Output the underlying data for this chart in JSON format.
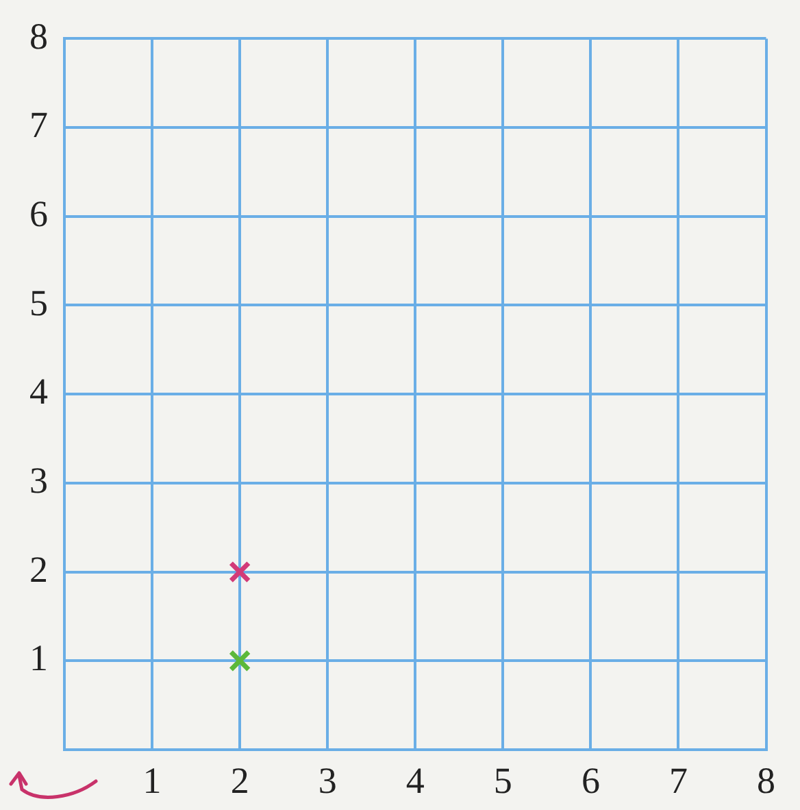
{
  "chart_data": {
    "type": "scatter",
    "xlim": [
      0,
      8
    ],
    "ylim": [
      0,
      8
    ],
    "xticks": [
      {
        "value": 0,
        "label": null
      },
      1,
      2,
      3,
      4,
      5,
      6,
      7,
      8
    ],
    "yticks": [
      {
        "value": 0,
        "label": null
      },
      1,
      2,
      3,
      4,
      5,
      6,
      7,
      8
    ],
    "grid": true,
    "legend": false,
    "marker": "cross",
    "series": [
      {
        "color": "#d23a78",
        "x": [
          2
        ],
        "values": [
          2
        ]
      },
      {
        "color": "#5cb83a",
        "x": [
          2
        ],
        "values": [
          1
        ]
      }
    ]
  }
}
